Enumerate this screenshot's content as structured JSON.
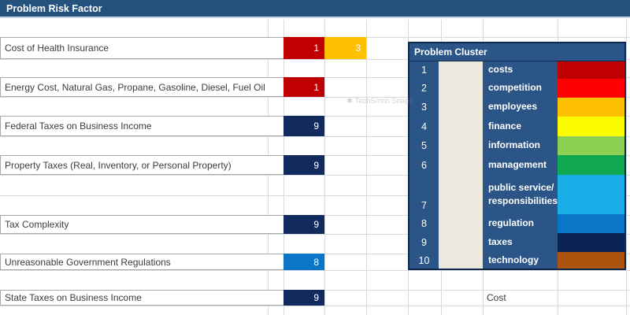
{
  "title": "Problem Risk Factor",
  "colors": {
    "topbar_bg": "#24517e",
    "cluster_bg": "#2b5586",
    "table_border": "#10294a",
    "cream_col": "#ebe8dd",
    "gridline": "#d6d9de",
    "cell_border": "#a9a9a9",
    "value_navy": "#122b5e",
    "value_red": "#c00000",
    "value_amber": "#fdc101",
    "value_azure": "#0b76c7"
  },
  "rows": [
    {
      "label": "Cost of Health Insurance",
      "cells": [
        {
          "value": "1",
          "color": "#c00000"
        },
        {
          "value": "3",
          "color": "#fdc101"
        }
      ]
    },
    {
      "label": "Energy Cost, Natural Gas, Propane, Gasoline, Diesel, Fuel Oil",
      "cells": [
        {
          "value": "1",
          "color": "#c00000"
        }
      ]
    },
    {
      "label": "Federal Taxes on Business Income",
      "cells": [
        {
          "value": "9",
          "color": "#122b5e"
        }
      ]
    },
    {
      "label": "Property Taxes (Real, Inventory, or Personal Property)",
      "cells": [
        {
          "value": "9",
          "color": "#122b5e"
        }
      ]
    },
    {
      "label": "Tax Complexity",
      "cells": [
        {
          "value": "9",
          "color": "#122b5e"
        }
      ]
    },
    {
      "label": "Unreasonable Government Regulations",
      "cells": [
        {
          "value": "8",
          "color": "#0b76c7"
        }
      ]
    },
    {
      "label": "State Taxes on Business Income",
      "cells": [
        {
          "value": "9",
          "color": "#122b5e"
        }
      ]
    }
  ],
  "cluster": {
    "title": "Problem Cluster",
    "items": [
      {
        "num": "1",
        "label": "costs",
        "color": "#c00000"
      },
      {
        "num": "2",
        "label": "competition",
        "color": "#fe0000"
      },
      {
        "num": "3",
        "label": "employees",
        "color": "#fdc101"
      },
      {
        "num": "4",
        "label": "finance",
        "color": "#fcfd03"
      },
      {
        "num": "5",
        "label": "information",
        "color": "#8ed052"
      },
      {
        "num": "6",
        "label": "management",
        "color": "#0fa74f"
      },
      {
        "num": "7",
        "label": "public service/\nresponsibilities",
        "color": "#1aade8"
      },
      {
        "num": "8",
        "label": "regulation",
        "color": "#0b76c7"
      },
      {
        "num": "9",
        "label": "taxes",
        "color": "#0b2456"
      },
      {
        "num": "10",
        "label": "technology",
        "color": "#a9530f"
      }
    ]
  },
  "footer": {
    "cost_label": "Cost"
  },
  "watermark": "TechSmith Snagit"
}
